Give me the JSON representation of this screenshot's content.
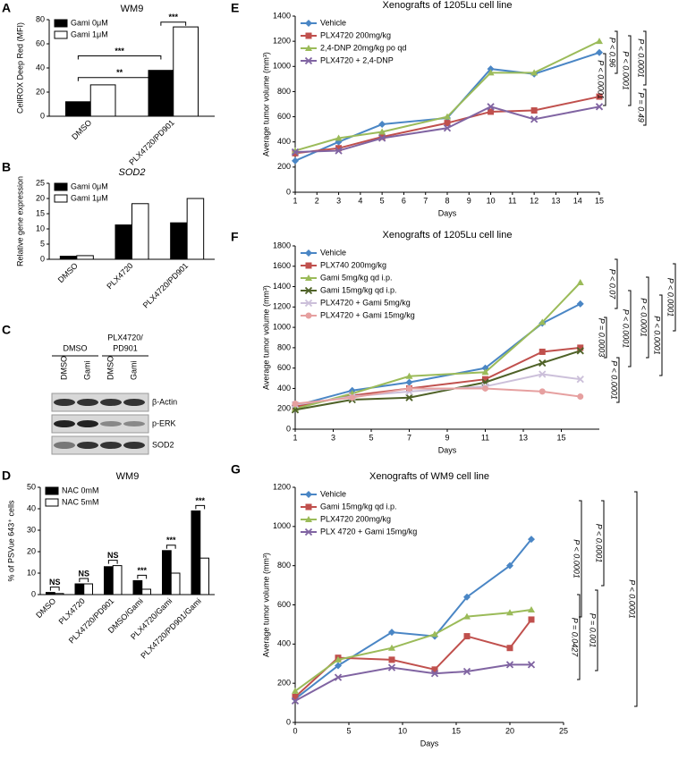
{
  "chart_data": [
    {
      "type": "bar",
      "panel": "A",
      "title": "WM9",
      "ylabel": "CellROX Deep Red (MFI)",
      "categories": [
        "DMSO",
        "PLX4720/PD901"
      ],
      "series": [
        {
          "name": "Gami 0μM",
          "color": "#000000",
          "values": [
            12,
            38
          ]
        },
        {
          "name": "Gami 1μM",
          "color": "#ffffff",
          "values": [
            26,
            74
          ]
        }
      ],
      "ylim": [
        0,
        80
      ],
      "yticks": [
        0,
        20,
        40,
        60,
        80
      ],
      "annotations": [
        "**",
        "***",
        "***"
      ]
    },
    {
      "type": "bar",
      "panel": "B",
      "title": "SOD2",
      "ylabel": "Relative gene expression",
      "categories": [
        "DMSO",
        "PLX4720",
        "PLX4720/PD901"
      ],
      "series": [
        {
          "name": "Gami 0μM",
          "color": "#000000",
          "values": [
            1,
            11.3,
            12
          ]
        },
        {
          "name": "Gami 1μM",
          "color": "#ffffff",
          "values": [
            1.2,
            18.3,
            20
          ]
        }
      ],
      "ylim": [
        0,
        25
      ],
      "yticks": [
        0,
        5,
        10,
        15,
        20,
        25
      ],
      "annotations": []
    },
    {
      "type": "bar",
      "panel": "D",
      "title": "WM9",
      "ylabel": "% of PSVue 643⁺ cells",
      "categories": [
        "DMSO",
        "PLX4720",
        "PLX4720/PD901",
        "DMSO/Gami",
        "PLX4720/Gami",
        "PLX4720/PD901/Gami"
      ],
      "series": [
        {
          "name": "NAC 0mM",
          "color": "#000000",
          "values": [
            1,
            5,
            13,
            6.5,
            20.5,
            39
          ]
        },
        {
          "name": "NAC 5mM",
          "color": "#ffffff",
          "values": [
            0.5,
            5,
            13.5,
            2.5,
            10,
            17
          ]
        }
      ],
      "ylim": [
        0,
        50
      ],
      "yticks": [
        0,
        10,
        20,
        30,
        40,
        50
      ],
      "annotations": [
        "NS",
        "NS",
        "NS",
        "***",
        "***",
        "***"
      ]
    },
    {
      "type": "line",
      "panel": "E",
      "title": "Xenografts of 1205Lu cell line",
      "xlabel": "Days",
      "ylabel": "Average tumor volume (mm³)",
      "x": [
        1,
        3,
        5,
        8,
        10,
        12,
        15
      ],
      "series": [
        {
          "name": "Vehicle",
          "color": "#4a86c5",
          "marker": "diamond",
          "values": [
            250,
            400,
            540,
            590,
            980,
            940,
            1110
          ]
        },
        {
          "name": "PLX4720 200mg/kg",
          "color": "#c0504d",
          "marker": "square",
          "values": [
            310,
            350,
            440,
            550,
            640,
            650,
            760
          ]
        },
        {
          "name": "2,4-DNP 20mg/kg po qd",
          "color": "#9bbb59",
          "marker": "triangle",
          "values": [
            330,
            430,
            480,
            600,
            950,
            950,
            1200
          ]
        },
        {
          "name": "PLX4720 + 2,4-DNP",
          "color": "#8064a2",
          "marker": "x",
          "values": [
            320,
            330,
            430,
            510,
            680,
            580,
            680
          ]
        }
      ],
      "xlim": [
        1,
        15
      ],
      "xticks": [
        1,
        2,
        3,
        4,
        5,
        6,
        7,
        8,
        9,
        10,
        11,
        12,
        13,
        14,
        15
      ],
      "ylim": [
        0,
        1400
      ],
      "yticks": [
        0,
        200,
        400,
        600,
        800,
        1000,
        1200,
        1400
      ],
      "annotations": [
        "P < 0.96",
        "P < 0.0001",
        "P < 0.0001",
        "P < 0.0001",
        "P = 0.49"
      ]
    },
    {
      "type": "line",
      "panel": "F",
      "title": "Xenografts of 1205Lu cell line",
      "xlabel": "Days",
      "ylabel": "Average tumor volume (mm³)",
      "x": [
        1,
        4,
        7,
        11,
        14,
        16
      ],
      "series": [
        {
          "name": "Vehicle",
          "color": "#4a86c5",
          "marker": "diamond",
          "values": [
            230,
            380,
            460,
            600,
            1040,
            1230
          ]
        },
        {
          "name": "PLX740 200mg/kg",
          "color": "#c0504d",
          "marker": "square",
          "values": [
            220,
            330,
            400,
            490,
            760,
            800
          ]
        },
        {
          "name": "Gami 5mg/kg qd i.p.",
          "color": "#9bbb59",
          "marker": "triangle",
          "values": [
            200,
            350,
            520,
            560,
            1050,
            1440
          ]
        },
        {
          "name": "Gami 15mg/kg qd i.p.",
          "color": "#4f6228",
          "marker": "x",
          "values": [
            190,
            290,
            310,
            460,
            650,
            770
          ]
        },
        {
          "name": "PLX4720 + Gami 5mg/kg",
          "color": "#ccc0da",
          "marker": "x",
          "values": [
            240,
            320,
            370,
            420,
            540,
            490
          ]
        },
        {
          "name": "PLX4720 + Gami 15mg/kg",
          "color": "#e6a0a0",
          "marker": "circle",
          "values": [
            250,
            310,
            400,
            400,
            370,
            320
          ]
        }
      ],
      "xlim": [
        1,
        17
      ],
      "xticks": [
        1,
        3,
        5,
        7,
        9,
        11,
        13,
        15
      ],
      "ylim": [
        0,
        1800
      ],
      "yticks": [
        0,
        200,
        400,
        600,
        800,
        1000,
        1200,
        1400,
        1600,
        1800
      ],
      "annotations": [
        "P < 0.07",
        "P < 0.0001",
        "P < 0.0001",
        "P < 0.0001",
        "P < 0.0001",
        "P = 0.0003",
        "P < 0.0001"
      ]
    },
    {
      "type": "line",
      "panel": "G",
      "title": "Xenografts of WM9 cell line",
      "xlabel": "Days",
      "ylabel": "Average tumor volume (mm³)",
      "x": [
        0,
        4,
        9,
        13,
        16,
        20,
        22
      ],
      "series": [
        {
          "name": "Vehicle",
          "color": "#4a86c5",
          "marker": "diamond",
          "values": [
            120,
            290,
            460,
            440,
            640,
            800,
            935
          ]
        },
        {
          "name": "Gami 15mg/kg qd i.p.",
          "color": "#c0504d",
          "marker": "square",
          "values": [
            130,
            330,
            320,
            270,
            440,
            380,
            525
          ]
        },
        {
          "name": "PLX4720 200mg/kg",
          "color": "#9bbb59",
          "marker": "triangle",
          "values": [
            160,
            320,
            380,
            450,
            540,
            560,
            575
          ]
        },
        {
          "name": "PLX 4720 + Gami 15mg/kg",
          "color": "#8064a2",
          "marker": "x",
          "values": [
            110,
            230,
            280,
            250,
            260,
            295,
            295
          ]
        }
      ],
      "xlim": [
        0,
        25
      ],
      "xticks": [
        0,
        5,
        10,
        15,
        20,
        25
      ],
      "ylim": [
        0,
        1200
      ],
      "yticks": [
        0,
        200,
        400,
        600,
        800,
        1000,
        1200
      ],
      "annotations": [
        "P < 0.0001",
        "P < 0.0001",
        "P < 0.0001",
        "P = 0.0427",
        "P = 0.001"
      ]
    }
  ],
  "blot": {
    "panel": "C",
    "groups": [
      [
        "DMSO"
      ],
      [
        "PLX4720/",
        "PD901"
      ]
    ],
    "lanes": [
      "DMSO",
      "Gami",
      "DMSO",
      "Gami"
    ],
    "rows": [
      "β-Actin",
      "p-ERK",
      "SOD2"
    ]
  }
}
